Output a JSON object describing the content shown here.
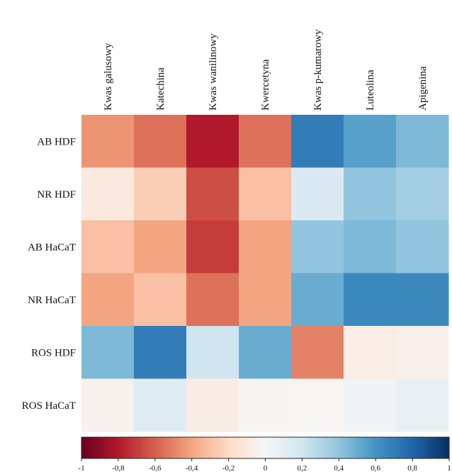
{
  "chart_data": {
    "type": "heatmap",
    "columns": [
      "Kwas galusowy",
      "Katechina",
      "Kwas wanilinowy",
      "Kwercetyna",
      "Kwas p-kumarowy",
      "Luteolina",
      "Apigenina"
    ],
    "rows": [
      "AB HDF",
      "NR HDF",
      "AB HaCaT",
      "NR HaCaT",
      "ROS HDF",
      "ROS HaCaT"
    ],
    "values": [
      [
        -0.45,
        -0.55,
        -0.8,
        -0.55,
        0.7,
        0.55,
        0.45
      ],
      [
        -0.1,
        -0.25,
        -0.65,
        -0.3,
        0.15,
        0.4,
        0.35
      ],
      [
        -0.3,
        -0.4,
        -0.7,
        -0.4,
        0.4,
        0.45,
        0.4
      ],
      [
        -0.4,
        -0.3,
        -0.55,
        -0.4,
        0.5,
        0.65,
        0.65
      ],
      [
        0.45,
        0.7,
        0.2,
        0.5,
        -0.5,
        -0.07,
        -0.05
      ],
      [
        -0.04,
        0.12,
        -0.08,
        -0.02,
        -0.01,
        0.03,
        0.08
      ]
    ],
    "colorbar": {
      "min": -1,
      "max": 1,
      "ticks": [
        "-1",
        "-0,8",
        "-0,6",
        "-0,4",
        "-0,2",
        "0",
        "0,2",
        "0,4",
        "0,6",
        "0,8",
        "1"
      ]
    },
    "colormap": [
      "#67001f",
      "#b2182b",
      "#d6604d",
      "#f4a582",
      "#fddbc7",
      "#f7f7f7",
      "#d1e5f0",
      "#92c5de",
      "#4393c3",
      "#2166ac",
      "#053061"
    ]
  }
}
